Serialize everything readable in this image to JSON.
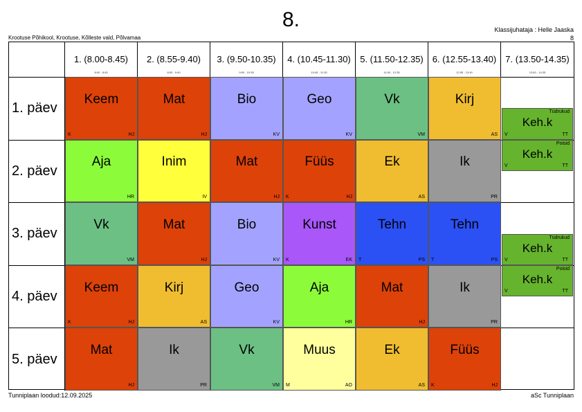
{
  "title": "8.",
  "school": "Krootuse Põhikool, Krootuse, Kõlleste vald, Põlvamaa",
  "teacher": "Klassijuhataja : Helle Jaaska",
  "teacher_sub": "8",
  "footer_left": "Tunniplaan loodud:12.09.2025",
  "footer_right": "aSc Tunniplaan",
  "periods": [
    {
      "label": "1. (8.00-8.45)",
      "small": "8:00 - 8:45"
    },
    {
      "label": "2. (8.55-9.40)",
      "small": "8:55 - 9:40"
    },
    {
      "label": "3. (9.50-10.35)",
      "small": "9:50 - 10:35"
    },
    {
      "label": "4. (10.45-11.30)",
      "small": "10:45 - 11:30"
    },
    {
      "label": "5. (11.50-12.35)",
      "small": "11:50 - 12:35"
    },
    {
      "label": "6. (12.55-13.40)",
      "small": "12:55 - 13:40"
    },
    {
      "label": "7. (13.50-14.35)",
      "small": "13:50 - 14:35"
    }
  ],
  "days": [
    "1. päev",
    "2. päev",
    "3. päev",
    "4. päev",
    "5. päev"
  ],
  "colors": {
    "red": "#dd4208",
    "lilac": "#a3a3ff",
    "green": "#6cc083",
    "yellow": "#f0bd30",
    "lime": "#8cfc3a",
    "lightyellow": "#ffff3b",
    "purple": "#a957f8",
    "blue": "#2b51f5",
    "gray": "#999999",
    "cream": "#ffff9e",
    "kehk": "#66b32e"
  },
  "lessons": [
    {
      "day": 0,
      "p": 0,
      "subject": "Keem",
      "room": "K",
      "teacher": "HJ",
      "color": "red"
    },
    {
      "day": 0,
      "p": 1,
      "subject": "Mat",
      "room": "",
      "teacher": "HJ",
      "color": "red"
    },
    {
      "day": 0,
      "p": 2,
      "subject": "Bio",
      "room": "",
      "teacher": "KV",
      "color": "lilac"
    },
    {
      "day": 0,
      "p": 3,
      "subject": "Geo",
      "room": "",
      "teacher": "KV",
      "color": "lilac"
    },
    {
      "day": 0,
      "p": 4,
      "subject": "Vk",
      "room": "",
      "teacher": "VM",
      "color": "green"
    },
    {
      "day": 0,
      "p": 5,
      "subject": "Kirj",
      "room": "",
      "teacher": "AS",
      "color": "yellow"
    },
    {
      "day": 1,
      "p": 0,
      "subject": "Aja",
      "room": "",
      "teacher": "HR",
      "color": "lime"
    },
    {
      "day": 1,
      "p": 1,
      "subject": "Inim",
      "room": "",
      "teacher": "IV",
      "color": "lightyellow"
    },
    {
      "day": 1,
      "p": 2,
      "subject": "Mat",
      "room": "",
      "teacher": "HJ",
      "color": "red"
    },
    {
      "day": 1,
      "p": 3,
      "subject": "Füüs",
      "room": "K",
      "teacher": "HJ",
      "color": "red"
    },
    {
      "day": 1,
      "p": 4,
      "subject": "Ek",
      "room": "",
      "teacher": "AS",
      "color": "yellow"
    },
    {
      "day": 1,
      "p": 5,
      "subject": "Ik",
      "room": "",
      "teacher": "PR",
      "color": "gray"
    },
    {
      "day": 2,
      "p": 0,
      "subject": "Vk",
      "room": "",
      "teacher": "VM",
      "color": "green"
    },
    {
      "day": 2,
      "p": 1,
      "subject": "Mat",
      "room": "",
      "teacher": "HJ",
      "color": "red"
    },
    {
      "day": 2,
      "p": 2,
      "subject": "Bio",
      "room": "",
      "teacher": "KV",
      "color": "lilac"
    },
    {
      "day": 2,
      "p": 3,
      "subject": "Kunst",
      "room": "K",
      "teacher": "EK",
      "color": "purple"
    },
    {
      "day": 2,
      "p": 4,
      "subject": "Tehn",
      "room": "T",
      "teacher": "PS",
      "color": "blue"
    },
    {
      "day": 2,
      "p": 5,
      "subject": "Tehn",
      "room": "T",
      "teacher": "PS",
      "color": "blue"
    },
    {
      "day": 3,
      "p": 0,
      "subject": "Keem",
      "room": "K",
      "teacher": "HJ",
      "color": "red"
    },
    {
      "day": 3,
      "p": 1,
      "subject": "Kirj",
      "room": "",
      "teacher": "AS",
      "color": "yellow"
    },
    {
      "day": 3,
      "p": 2,
      "subject": "Geo",
      "room": "",
      "teacher": "KV",
      "color": "lilac"
    },
    {
      "day": 3,
      "p": 3,
      "subject": "Aja",
      "room": "",
      "teacher": "HR",
      "color": "lime"
    },
    {
      "day": 3,
      "p": 4,
      "subject": "Mat",
      "room": "",
      "teacher": "HJ",
      "color": "red"
    },
    {
      "day": 3,
      "p": 5,
      "subject": "Ik",
      "room": "",
      "teacher": "PR",
      "color": "gray"
    },
    {
      "day": 4,
      "p": 0,
      "subject": "Mat",
      "room": "",
      "teacher": "HJ",
      "color": "red"
    },
    {
      "day": 4,
      "p": 1,
      "subject": "Ik",
      "room": "",
      "teacher": "PR",
      "color": "gray"
    },
    {
      "day": 4,
      "p": 2,
      "subject": "Vk",
      "room": "",
      "teacher": "VM",
      "color": "green"
    },
    {
      "day": 4,
      "p": 3,
      "subject": "Muus",
      "room": "M",
      "teacher": "AO",
      "color": "cream"
    },
    {
      "day": 4,
      "p": 4,
      "subject": "Ek",
      "room": "",
      "teacher": "AS",
      "color": "yellow"
    },
    {
      "day": 4,
      "p": 5,
      "subject": "Füüs",
      "room": "K",
      "teacher": "HJ",
      "color": "red"
    }
  ],
  "group_lessons": [
    {
      "day": 0,
      "slot": "bottom",
      "group": "Tüdrukud",
      "subject": "Keh.k",
      "room": "V",
      "teacher": "TT"
    },
    {
      "day": 1,
      "slot": "top",
      "group": "Poisid",
      "subject": "Keh.k",
      "room": "V",
      "teacher": "TT"
    },
    {
      "day": 2,
      "slot": "bottom",
      "group": "Tüdrukud",
      "subject": "Keh.k",
      "room": "V",
      "teacher": "TT"
    },
    {
      "day": 3,
      "slot": "top",
      "group": "Poisid",
      "subject": "Keh.k",
      "room": "V",
      "teacher": "TT"
    }
  ]
}
